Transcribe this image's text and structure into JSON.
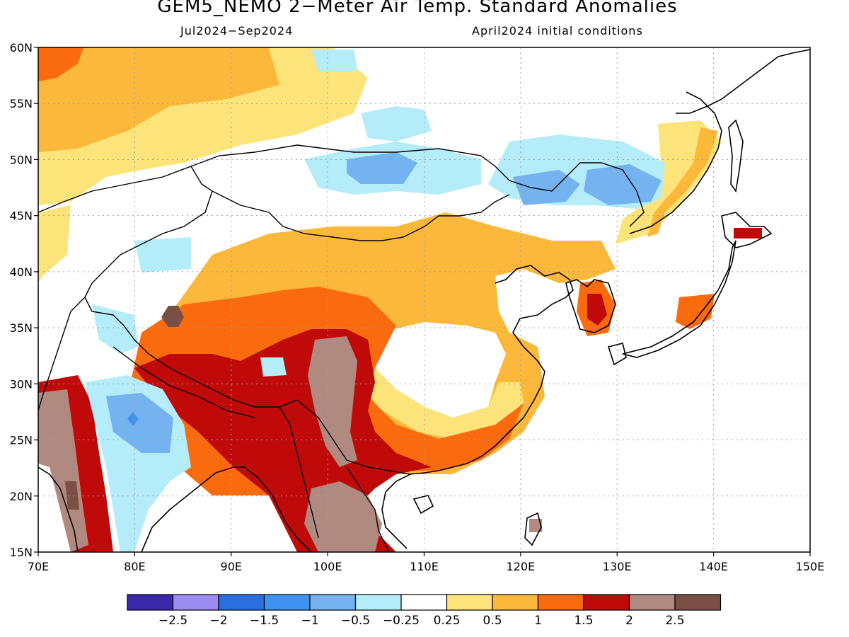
{
  "title": "GEM5_NEMO 2−Meter Air Temp. Standard Anomalies",
  "subtitle_left": "Jul2024−Sep2024",
  "subtitle_right": "April2024 initial conditions",
  "map": {
    "lon_range": [
      70,
      150
    ],
    "lat_range": [
      15,
      60
    ],
    "lon_ticks": [
      "70E",
      "80E",
      "90E",
      "100E",
      "110E",
      "120E",
      "130E",
      "140E",
      "150E"
    ],
    "lat_ticks": [
      "15N",
      "20N",
      "25N",
      "30N",
      "35N",
      "40N",
      "45N",
      "50N",
      "55N",
      "60N"
    ],
    "gridlines": "dotted"
  },
  "colorbar": {
    "colors": [
      "#3a28a8",
      "#9b8cf0",
      "#2a6ee0",
      "#3f93f0",
      "#74b2f0",
      "#b4ecfa",
      "#ffffff",
      "#fde47a",
      "#fbb83a",
      "#fa6a0e",
      "#c00a0a",
      "#b08a80",
      "#7a5046"
    ],
    "labels": [
      "−2.5",
      "−2",
      "−1.5",
      "−1",
      "−0.5",
      "−0.25",
      "0.25",
      "0.5",
      "1",
      "1.5",
      "2",
      "2.5"
    ]
  }
}
